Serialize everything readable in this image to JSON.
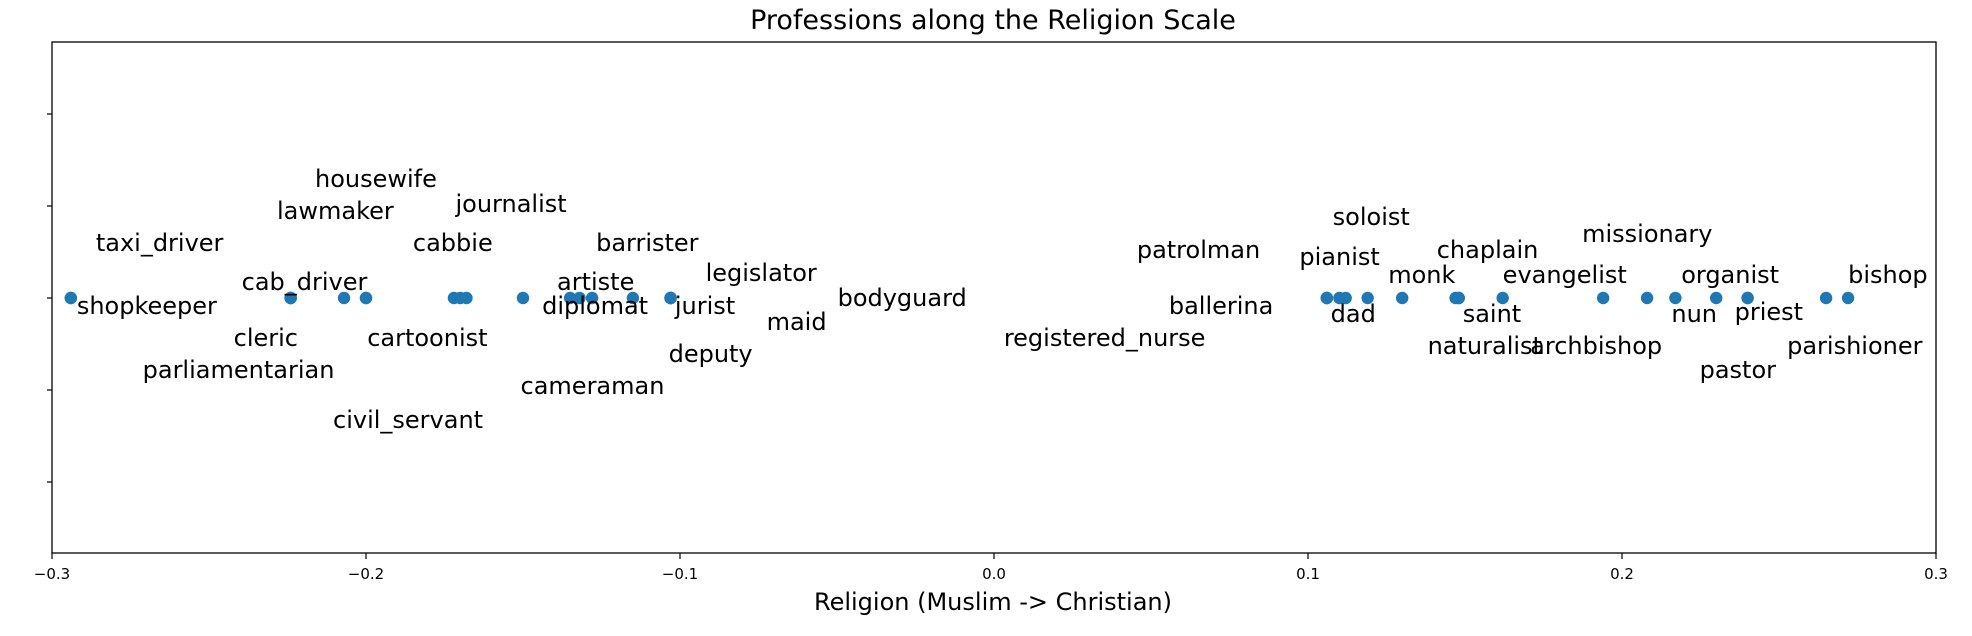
{
  "chart_data": {
    "type": "scatter",
    "title": "Professions along the Religion Scale",
    "xlabel": "Religion (Muslim -> Christian)",
    "ylabel": "",
    "xlim": [
      -0.3,
      0.3
    ],
    "xticks": [
      -0.3,
      -0.2,
      -0.1,
      0.0,
      0.1,
      0.2,
      0.3
    ],
    "xtick_labels": [
      "−0.3",
      "−0.2",
      "−0.1",
      "0.0",
      "0.1",
      "0.2",
      "0.3"
    ],
    "yticks_visible_labels": false,
    "grid": false,
    "marker_color": "#1f77b4",
    "points": [
      {
        "label": "shopkeeper",
        "x": -0.294
      },
      {
        "label": "taxi_driver",
        "x": -0.294
      },
      {
        "label": "cab_driver",
        "x": -0.224
      },
      {
        "label": "cleric",
        "x": -0.224
      },
      {
        "label": "parliamentarian",
        "x": -0.224
      },
      {
        "label": "lawmaker",
        "x": -0.207
      },
      {
        "label": "housewife",
        "x": -0.2
      },
      {
        "label": "civil_servant",
        "x": -0.2
      },
      {
        "label": "cabbie",
        "x": -0.172
      },
      {
        "label": "cartoonist",
        "x": -0.17
      },
      {
        "label": "journalist",
        "x": -0.168
      },
      {
        "label": "artiste",
        "x": -0.15
      },
      {
        "label": "diplomat",
        "x": -0.135
      },
      {
        "label": "cameraman",
        "x": -0.132
      },
      {
        "label": "barrister",
        "x": -0.128
      },
      {
        "label": "jurist",
        "x": -0.115
      },
      {
        "label": "legislator",
        "x": -0.103
      },
      {
        "label": "deputy",
        "x": -0.103
      },
      {
        "label": "maid",
        "x": -0.103
      },
      {
        "label": "bodyguard",
        "x": -0.103
      },
      {
        "label": "registered_nurse",
        "x": 0.106
      },
      {
        "label": "patrolman",
        "x": 0.106
      },
      {
        "label": "ballerina",
        "x": 0.106
      },
      {
        "label": "pianist",
        "x": 0.11
      },
      {
        "label": "dad",
        "x": 0.112
      },
      {
        "label": "soloist",
        "x": 0.119
      },
      {
        "label": "monk",
        "x": 0.13
      },
      {
        "label": "naturalist",
        "x": 0.147
      },
      {
        "label": "chaplain",
        "x": 0.148
      },
      {
        "label": "saint",
        "x": 0.148
      },
      {
        "label": "evangelist",
        "x": 0.162
      },
      {
        "label": "archbishop",
        "x": 0.194
      },
      {
        "label": "missionary",
        "x": 0.208
      },
      {
        "label": "nun",
        "x": 0.217
      },
      {
        "label": "organist",
        "x": 0.23
      },
      {
        "label": "priest",
        "x": 0.24
      },
      {
        "label": "pastor",
        "x": 0.24
      },
      {
        "label": "parishioner",
        "x": 0.265
      },
      {
        "label": "bishop",
        "x": 0.272
      }
    ]
  }
}
